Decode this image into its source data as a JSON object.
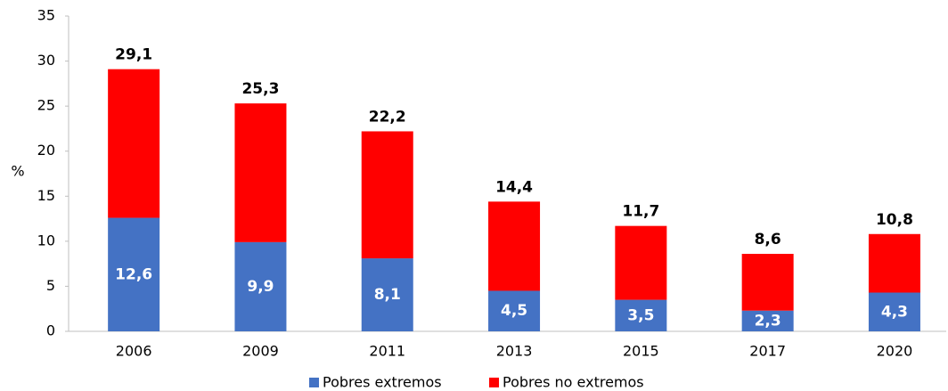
{
  "chart_data": {
    "type": "stacked_bar",
    "y_label": "%",
    "categories": [
      "2006",
      "2009",
      "2011",
      "2013",
      "2015",
      "2017",
      "2020"
    ],
    "series": [
      {
        "name": "Pobres extremos",
        "color": "#4472c4",
        "values": [
          12.6,
          9.9,
          8.1,
          4.5,
          3.5,
          2.3,
          4.3
        ],
        "value_labels": [
          "12,6",
          "9,9",
          "8,1",
          "4,5",
          "3,5",
          "2,3",
          "4,3"
        ]
      },
      {
        "name": "Pobres no extremos",
        "color": "#ff0000",
        "values": [
          16.5,
          15.4,
          14.1,
          9.9,
          8.2,
          6.3,
          6.5
        ]
      }
    ],
    "totals": [
      29.1,
      25.3,
      22.2,
      14.4,
      11.7,
      8.6,
      10.8
    ],
    "total_labels": [
      "29,1",
      "25,3",
      "22,2",
      "14,4",
      "11,7",
      "8,6",
      "10,8"
    ],
    "ylim": [
      0,
      35
    ],
    "yticks": [
      0,
      5,
      10,
      15,
      20,
      25,
      30,
      35
    ],
    "grid": false
  }
}
